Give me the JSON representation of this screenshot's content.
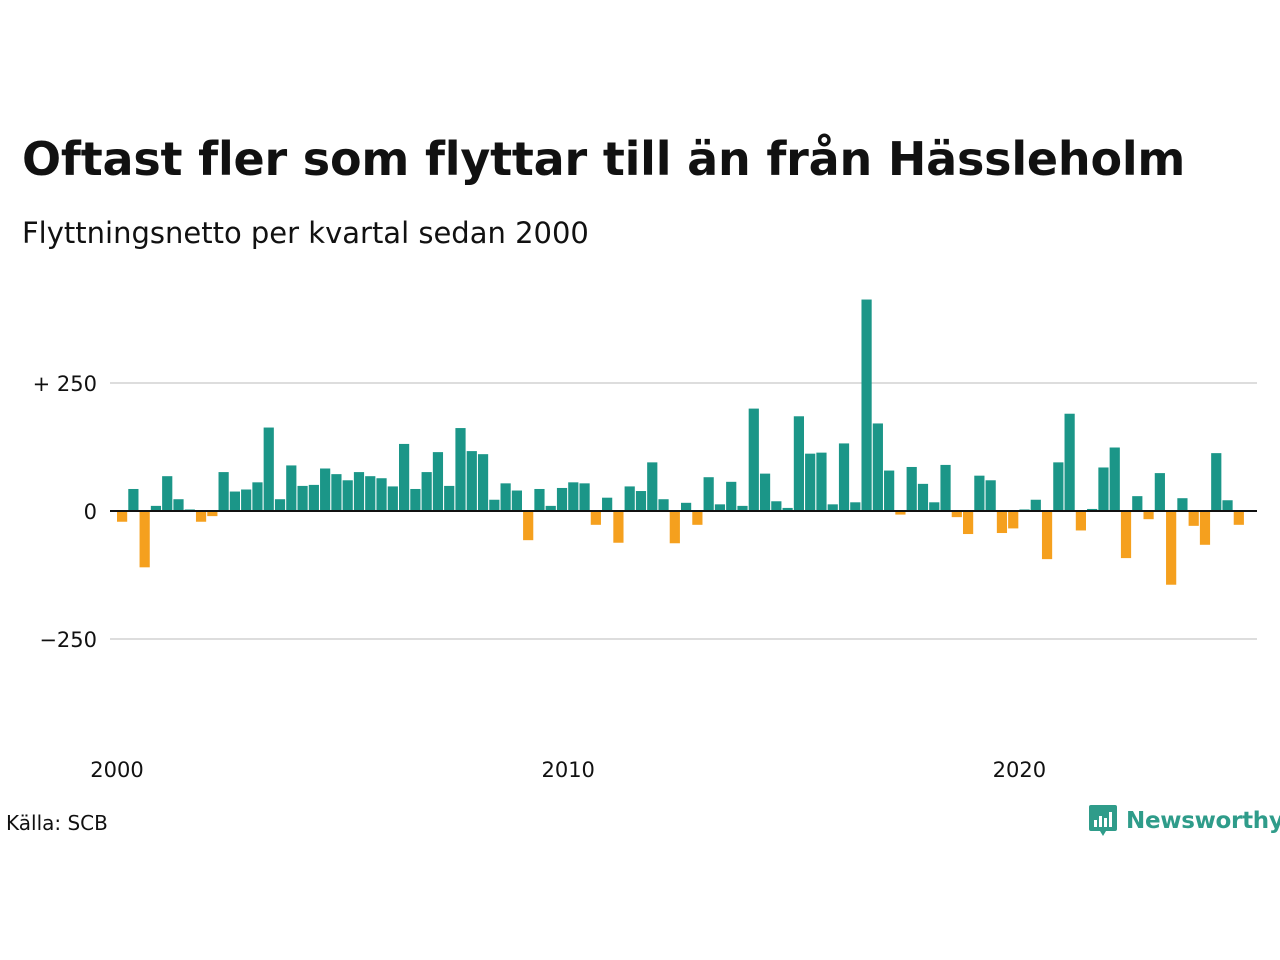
{
  "title": "Oftast fler som flyttar till än från Hässleholm",
  "subtitle": "Flyttningsnetto per kvartal sedan 2000",
  "source": "Källa: SCB",
  "brand": {
    "name": "Newsworthy",
    "color": "#2f9c8a",
    "icon": "newsworthy-chart-logo-icon"
  },
  "colors": {
    "positive": "#1b9688",
    "negative": "#f5a01e",
    "grid": "#dddddd",
    "zero_line": "#111111"
  },
  "chart_data": {
    "type": "bar",
    "title": "Oftast fler som flyttar till än från Hässleholm",
    "subtitle": "Flyttningsnetto per kvartal sedan 2000",
    "xlabel": "",
    "ylabel": "",
    "ylim": [
      -420,
      420
    ],
    "grid": true,
    "y_ticks": [
      {
        "value": 250,
        "label": "+ 250"
      },
      {
        "value": 0,
        "label": "0"
      },
      {
        "value": -250,
        "label": "−250"
      }
    ],
    "x_ticks": [
      {
        "value": 2000,
        "label": "2000"
      },
      {
        "value": 2010,
        "label": "2010"
      },
      {
        "value": 2020,
        "label": "2020"
      }
    ],
    "start_year": 2000,
    "values": [
      -21,
      43,
      -110,
      10,
      68,
      23,
      3,
      -21,
      -10,
      76,
      38,
      42,
      56,
      163,
      23,
      89,
      49,
      51,
      83,
      72,
      60,
      76,
      68,
      64,
      48,
      131,
      43,
      76,
      115,
      49,
      162,
      117,
      111,
      22,
      54,
      40,
      -57,
      43,
      10,
      45,
      56,
      54,
      -27,
      26,
      -62,
      48,
      39,
      95,
      23,
      -63,
      16,
      -27,
      66,
      13,
      57,
      10,
      200,
      73,
      19,
      6,
      185,
      112,
      114,
      13,
      132,
      17,
      413,
      171,
      79,
      -7,
      86,
      53,
      17,
      90,
      -12,
      -45,
      69,
      60,
      -43,
      -34,
      3,
      22,
      -94,
      95,
      190,
      -38,
      4,
      85,
      124,
      -92,
      29,
      -16,
      74,
      -144,
      25,
      -29,
      -66,
      113,
      21,
      -27
    ]
  }
}
